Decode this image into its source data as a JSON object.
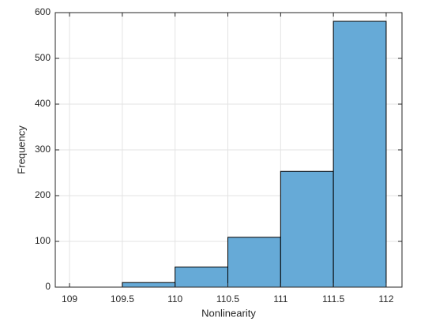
{
  "chart_data": {
    "type": "histogram",
    "x_label": "Nonlinearity",
    "y_label": "Frequency",
    "bins": [
      109,
      109.5,
      110,
      110.5,
      111,
      111.5,
      112
    ],
    "values": [
      0,
      10,
      44,
      109,
      253,
      581
    ],
    "color": "#66aad7",
    "edge_color": "#000000",
    "xlim": [
      108.865,
      112.15
    ],
    "xticks": [
      109,
      109.5,
      110,
      110.5,
      111,
      111.5,
      112
    ],
    "ylim": [
      0,
      600
    ],
    "yticks": [
      0,
      100,
      200,
      300,
      400,
      500,
      600
    ],
    "grid": true
  }
}
